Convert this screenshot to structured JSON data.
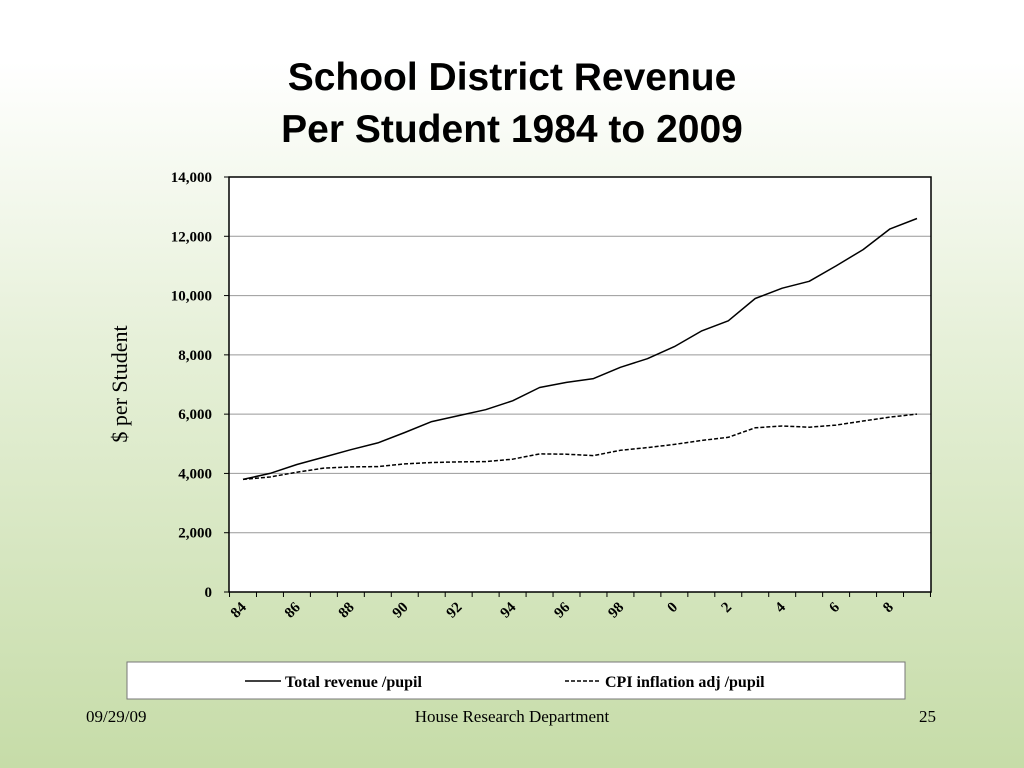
{
  "slide": {
    "title_line1": "School District Revenue",
    "title_line2": "Per Student 1984 to 2009",
    "date": "09/29/09",
    "department": "House Research Department",
    "page_number": "25"
  },
  "colors": {
    "plot_background": "#ffffff",
    "gridline": "#999999",
    "series_line": "#000000"
  },
  "chart_data": {
    "type": "line",
    "ylabel": "$ per Student",
    "xlabel": "",
    "ylim": [
      0,
      14000
    ],
    "yticks": [
      0,
      2000,
      4000,
      6000,
      8000,
      10000,
      12000,
      14000
    ],
    "ytick_labels": [
      "0",
      "2,000",
      "4,000",
      "6,000",
      "8,000",
      "10,000",
      "12,000",
      "14,000"
    ],
    "x": [
      1984,
      1985,
      1986,
      1987,
      1988,
      1989,
      1990,
      1991,
      1992,
      1993,
      1994,
      1995,
      1996,
      1997,
      1998,
      1999,
      2000,
      2001,
      2002,
      2003,
      2004,
      2005,
      2006,
      2007,
      2008,
      2009
    ],
    "xtick_labels": [
      "84",
      "86",
      "88",
      "90",
      "92",
      "94",
      "96",
      "98",
      "0",
      "2",
      "4",
      "6",
      "8"
    ],
    "xtick_years": [
      1984,
      1986,
      1988,
      1990,
      1992,
      1994,
      1996,
      1998,
      2000,
      2002,
      2004,
      2006,
      2008
    ],
    "grid": true,
    "legend_position": "bottom",
    "series": [
      {
        "name": "Total revenue /pupil",
        "style": "solid",
        "values": [
          3800,
          4000,
          4300,
          4550,
          4800,
          5030,
          5380,
          5750,
          5950,
          6150,
          6450,
          6900,
          7070,
          7200,
          7580,
          7870,
          8280,
          8800,
          9150,
          9900,
          10250,
          10480,
          11000,
          11550,
          12250,
          12600
        ]
      },
      {
        "name": "CPI inflation adj /pupil",
        "style": "dashed",
        "values": [
          3800,
          3880,
          4040,
          4180,
          4220,
          4230,
          4320,
          4370,
          4390,
          4400,
          4480,
          4660,
          4650,
          4600,
          4780,
          4870,
          4980,
          5110,
          5220,
          5540,
          5600,
          5560,
          5630,
          5770,
          5900,
          6000
        ]
      }
    ]
  }
}
